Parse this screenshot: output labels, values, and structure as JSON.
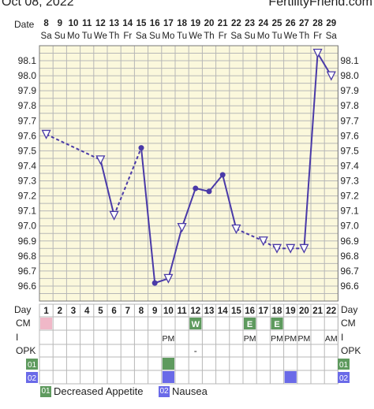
{
  "header": {
    "date": "Oct 08, 2022",
    "site": "FertilityFriend.com"
  },
  "labels": {
    "date_row": "Date",
    "day_row": "Day",
    "cm_row": "CM",
    "i_row": "I",
    "opk_row": "OPK",
    "row01": "01",
    "row02": "02"
  },
  "legend": [
    {
      "code": "01",
      "label": "Decreased Appetite",
      "color": "#5e9a5e"
    },
    {
      "code": "02",
      "label": "Nausea",
      "color": "#6a6ae8"
    }
  ],
  "colors": {
    "line": "#4a3aa8",
    "grid": "#b7b7b7",
    "plot_bg": "#fbf8dc",
    "period": "#f0b8c8"
  },
  "chart_data": {
    "type": "line",
    "dates": [
      "8",
      "9",
      "10",
      "11",
      "12",
      "13",
      "14",
      "15",
      "16",
      "17",
      "18",
      "19",
      "20",
      "21",
      "22",
      "23",
      "24",
      "25",
      "26",
      "27",
      "28",
      "29"
    ],
    "weekdays": [
      "Sa",
      "Su",
      "Mo",
      "Tu",
      "We",
      "Th",
      "Fr",
      "Sa",
      "Su",
      "Mo",
      "Tu",
      "We",
      "Th",
      "Fr",
      "Sa",
      "Su",
      "Mo",
      "Tu",
      "We",
      "Th",
      "Fr",
      "Sa"
    ],
    "days": [
      1,
      2,
      3,
      4,
      5,
      6,
      7,
      8,
      9,
      10,
      11,
      12,
      13,
      14,
      15,
      16,
      17,
      18,
      19,
      20,
      21,
      22
    ],
    "y_ticks": [
      "96.6",
      "96.7",
      "96.8",
      "96.9",
      "97.0",
      "97.1",
      "97.2",
      "97.3",
      "97.4",
      "97.5",
      "97.6",
      "97.7",
      "97.8",
      "97.9",
      "98.0",
      "98.1"
    ],
    "ylim": [
      96.5,
      98.2
    ],
    "temps": [
      97.61,
      null,
      null,
      null,
      97.44,
      97.07,
      null,
      97.52,
      96.62,
      96.65,
      96.99,
      97.25,
      97.23,
      97.34,
      96.98,
      null,
      96.9,
      96.85,
      96.85,
      96.85,
      98.15,
      98.0
    ],
    "open_markers": [
      1,
      5,
      6,
      10,
      11,
      15,
      17,
      18,
      19,
      20,
      21,
      22
    ],
    "dashed_from": [
      1,
      6,
      15,
      17,
      18,
      19
    ],
    "cm": [
      {
        "day": 1,
        "text": "",
        "bg": "#f0b8c8"
      },
      {
        "day": 12,
        "text": "W",
        "bg": "#5e9a5e"
      },
      {
        "day": 16,
        "text": "E",
        "bg": "#5e9a5e"
      },
      {
        "day": 18,
        "text": "E",
        "bg": "#5e9a5e"
      }
    ],
    "intercourse": [
      {
        "day": 10,
        "text": "PM"
      },
      {
        "day": 16,
        "text": "PM"
      },
      {
        "day": 18,
        "text": "PM"
      },
      {
        "day": 19,
        "text": "PM"
      },
      {
        "day": 20,
        "text": "PM"
      },
      {
        "day": 22,
        "text": "AM"
      }
    ],
    "opk": [
      {
        "day": 12,
        "text": "-"
      }
    ],
    "symptom01_days": [
      10
    ],
    "symptom02_days": [
      10,
      19
    ]
  }
}
